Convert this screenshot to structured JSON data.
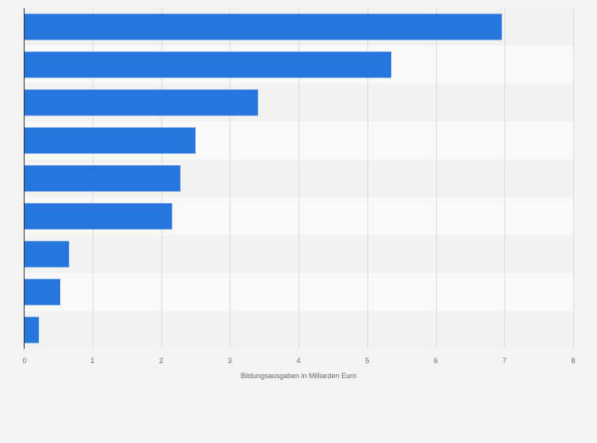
{
  "chart_data": {
    "type": "bar",
    "orientation": "horizontal",
    "title": "",
    "xlabel": "Bildungsausgaben in Milliarden Euro",
    "ylabel": "",
    "categories": [
      "",
      "",
      "",
      "",
      "",
      "",
      "",
      "",
      ""
    ],
    "values": [
      6.96,
      5.35,
      3.41,
      2.5,
      2.28,
      2.16,
      0.66,
      0.53,
      0.22
    ],
    "xlim": [
      0,
      8
    ],
    "xticks": [
      "0",
      "1",
      "2",
      "3",
      "4",
      "5",
      "6",
      "7",
      "8"
    ],
    "grid": true,
    "legend": "none"
  },
  "colors": {
    "bar": "#2776dd",
    "page_background": "#f4f4f4",
    "band_light": "#f9f9f9",
    "band_dark": "#f2f2f2",
    "grid": "#dcdcdc",
    "axis": "#333333"
  }
}
